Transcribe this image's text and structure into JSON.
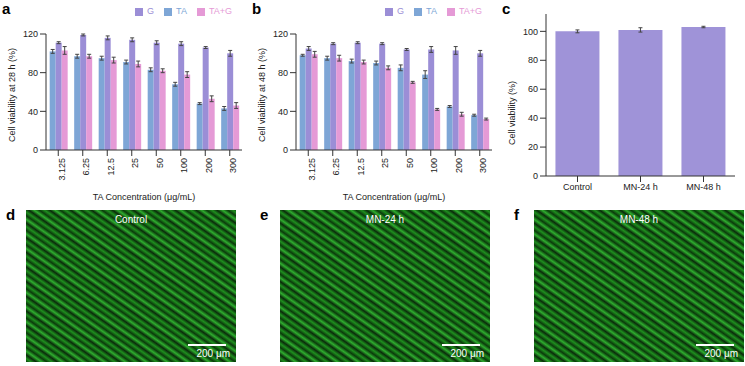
{
  "chart_data": [
    {
      "type": "bar",
      "title": "a",
      "x_label": "TA Concentration (μg/mL)",
      "y_label": "Cell viability at 28 h (%)",
      "categories": [
        "3.125",
        "6.25",
        "12.5",
        "25",
        "50",
        "100",
        "200",
        "300"
      ],
      "series": [
        {
          "name": "TA",
          "color": "#7ea6d6",
          "values": [
            102,
            97,
            95,
            91,
            83,
            68,
            48,
            43
          ],
          "errors": [
            2,
            2,
            2,
            2,
            2,
            2,
            1,
            2
          ]
        },
        {
          "name": "G",
          "color": "#9b8ed6",
          "values": [
            111,
            119,
            116,
            114,
            111,
            110,
            106,
            100
          ],
          "errors": [
            1,
            1,
            2,
            2,
            2,
            2,
            1,
            3
          ]
        },
        {
          "name": "TA+G",
          "color": "#e59ad6",
          "values": [
            103,
            97,
            93,
            89,
            82,
            78,
            53,
            46
          ],
          "errors": [
            4,
            2,
            3,
            3,
            2,
            3,
            3,
            3
          ]
        }
      ],
      "ylim": [
        0,
        120
      ],
      "yticks": [
        0,
        40,
        80,
        120
      ],
      "grid": false,
      "legend": "top-right"
    },
    {
      "type": "bar",
      "title": "b",
      "x_label": "TA Concentration (μg/mL)",
      "y_label": "Cell viability at 48 h (%)",
      "categories": [
        "3.125",
        "6.25",
        "12.5",
        "25",
        "50",
        "100",
        "200",
        "300"
      ],
      "series": [
        {
          "name": "TA",
          "color": "#7ea6d6",
          "values": [
            98,
            95,
            92,
            90,
            85,
            78,
            45,
            36
          ],
          "errors": [
            1,
            2,
            2,
            2,
            3,
            4,
            1,
            1
          ]
        },
        {
          "name": "G",
          "color": "#9b8ed6",
          "values": [
            105,
            110,
            111,
            110,
            104,
            104,
            103,
            100
          ],
          "errors": [
            2,
            1,
            1,
            1,
            1,
            3,
            4,
            3
          ]
        },
        {
          "name": "TA+G",
          "color": "#e59ad6",
          "values": [
            99,
            95,
            91,
            85,
            70,
            42,
            37,
            32
          ],
          "errors": [
            3,
            3,
            2,
            2,
            1,
            1,
            2,
            1
          ]
        }
      ],
      "ylim": [
        0,
        120
      ],
      "yticks": [
        0,
        40,
        80,
        120
      ],
      "grid": false,
      "legend": "top-right"
    },
    {
      "type": "bar",
      "title": "c",
      "y_label": "Cell viability (%)",
      "categories": [
        "Control",
        "MN-24 h",
        "MN-48 h"
      ],
      "values": [
        100,
        101,
        103
      ],
      "errors": [
        1,
        1.5,
        0.5
      ],
      "color": "#9f93d8",
      "ylim": [
        0,
        112
      ],
      "yticks": [
        0,
        20,
        40,
        60,
        80,
        100
      ],
      "grid": false
    }
  ],
  "images": [
    {
      "label": "d",
      "title": "Control",
      "scale_bar": "200 μm"
    },
    {
      "label": "e",
      "title": "MN-24 h",
      "scale_bar": "200 μm"
    },
    {
      "label": "f",
      "title": "MN-48 h",
      "scale_bar": "200 μm"
    }
  ]
}
